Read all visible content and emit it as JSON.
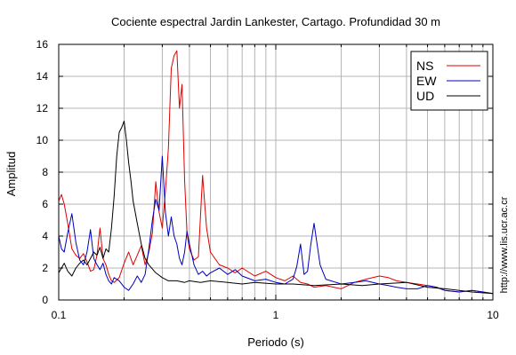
{
  "chart_data": {
    "type": "line",
    "title": "Cociente espectral Jardin Lankester, Cartago. Profundidad 30 m",
    "xlabel": "Periodo (s)",
    "ylabel": "Amplitud",
    "xscale": "log",
    "xlim": [
      0.1,
      10
    ],
    "ylim": [
      0,
      16
    ],
    "xticks": [
      {
        "value": 0.1,
        "label": "0.1"
      },
      {
        "value": 1,
        "label": "1"
      },
      {
        "value": 10,
        "label": "10"
      }
    ],
    "yticks": [
      {
        "value": 0,
        "label": "0"
      },
      {
        "value": 2,
        "label": "2"
      },
      {
        "value": 4,
        "label": "4"
      },
      {
        "value": 6,
        "label": "6"
      },
      {
        "value": 8,
        "label": "8"
      },
      {
        "value": 10,
        "label": "10"
      },
      {
        "value": 12,
        "label": "12"
      },
      {
        "value": 14,
        "label": "14"
      },
      {
        "value": 16,
        "label": "16"
      }
    ],
    "grid": true,
    "legend_position": "top-right",
    "side_note": "http://www.lis.ucr.ac.cr",
    "series": [
      {
        "name": "NS",
        "color": "#e00000",
        "x": [
          0.1,
          0.103,
          0.106,
          0.11,
          0.115,
          0.12,
          0.125,
          0.13,
          0.135,
          0.14,
          0.145,
          0.15,
          0.155,
          0.16,
          0.165,
          0.17,
          0.175,
          0.18,
          0.19,
          0.2,
          0.21,
          0.22,
          0.23,
          0.24,
          0.25,
          0.26,
          0.27,
          0.28,
          0.29,
          0.3,
          0.31,
          0.32,
          0.33,
          0.34,
          0.35,
          0.36,
          0.37,
          0.38,
          0.39,
          0.4,
          0.42,
          0.44,
          0.46,
          0.48,
          0.5,
          0.55,
          0.6,
          0.65,
          0.7,
          0.8,
          0.9,
          1.0,
          1.1,
          1.2,
          1.3,
          1.4,
          1.5,
          1.7,
          2.0,
          2.3,
          2.6,
          3.0,
          3.3,
          3.6,
          4.0,
          4.5,
          5.0,
          5.5,
          6.0,
          7.0,
          8.0,
          9.0,
          10.0
        ],
        "y": [
          6.2,
          6.6,
          6.0,
          4.8,
          3.2,
          2.8,
          2.6,
          2.9,
          2.4,
          1.8,
          1.9,
          2.8,
          4.5,
          2.6,
          2.2,
          1.6,
          1.2,
          1.1,
          1.4,
          2.3,
          3.0,
          2.2,
          2.8,
          3.4,
          2.2,
          3.0,
          4.2,
          7.4,
          5.5,
          4.5,
          6.8,
          9.5,
          14.5,
          15.3,
          15.6,
          12.0,
          13.5,
          7.5,
          4.2,
          3.2,
          2.5,
          2.7,
          7.8,
          4.5,
          3.0,
          2.2,
          2.0,
          1.7,
          2.0,
          1.5,
          1.8,
          1.4,
          1.2,
          1.5,
          1.1,
          1.0,
          0.8,
          0.9,
          0.7,
          1.1,
          1.3,
          1.5,
          1.4,
          1.2,
          1.1,
          1.0,
          0.9,
          0.8,
          0.6,
          0.5,
          0.6,
          0.5,
          0.4
        ]
      },
      {
        "name": "EW",
        "color": "#0000c0",
        "x": [
          0.1,
          0.103,
          0.106,
          0.11,
          0.115,
          0.12,
          0.125,
          0.13,
          0.135,
          0.14,
          0.145,
          0.15,
          0.155,
          0.16,
          0.165,
          0.17,
          0.175,
          0.18,
          0.19,
          0.2,
          0.21,
          0.22,
          0.23,
          0.24,
          0.25,
          0.26,
          0.27,
          0.28,
          0.29,
          0.3,
          0.31,
          0.32,
          0.33,
          0.34,
          0.35,
          0.36,
          0.37,
          0.38,
          0.39,
          0.4,
          0.42,
          0.44,
          0.46,
          0.48,
          0.5,
          0.55,
          0.6,
          0.65,
          0.7,
          0.8,
          0.9,
          1.0,
          1.1,
          1.2,
          1.25,
          1.3,
          1.35,
          1.4,
          1.45,
          1.5,
          1.6,
          1.7,
          2.0,
          2.3,
          2.6,
          3.0,
          3.3,
          3.6,
          4.0,
          4.5,
          5.0,
          5.5,
          6.0,
          7.0,
          8.0,
          9.0,
          10.0
        ],
        "y": [
          4.0,
          3.2,
          3.0,
          4.2,
          5.4,
          3.6,
          2.5,
          2.2,
          3.0,
          4.4,
          2.6,
          2.2,
          1.9,
          2.3,
          1.6,
          1.2,
          1.0,
          1.4,
          1.2,
          0.8,
          0.6,
          1.0,
          1.5,
          1.1,
          1.6,
          3.2,
          5.0,
          6.3,
          5.6,
          9.0,
          5.5,
          4.0,
          5.2,
          4.0,
          3.5,
          2.6,
          2.2,
          3.0,
          4.3,
          3.5,
          2.2,
          1.6,
          1.8,
          1.5,
          1.7,
          2.0,
          1.6,
          1.9,
          1.5,
          1.2,
          1.3,
          1.1,
          1.0,
          1.3,
          2.1,
          3.5,
          1.6,
          1.8,
          3.5,
          4.8,
          2.2,
          1.3,
          1.0,
          1.1,
          1.2,
          1.0,
          0.9,
          0.8,
          0.7,
          0.7,
          0.9,
          0.8,
          0.6,
          0.5,
          0.6,
          0.5,
          0.4
        ]
      },
      {
        "name": "UD",
        "color": "#000000",
        "x": [
          0.1,
          0.103,
          0.106,
          0.11,
          0.115,
          0.12,
          0.125,
          0.13,
          0.135,
          0.14,
          0.145,
          0.15,
          0.155,
          0.16,
          0.165,
          0.17,
          0.175,
          0.18,
          0.185,
          0.19,
          0.195,
          0.2,
          0.205,
          0.21,
          0.215,
          0.22,
          0.23,
          0.24,
          0.25,
          0.26,
          0.28,
          0.3,
          0.32,
          0.35,
          0.38,
          0.4,
          0.45,
          0.5,
          0.6,
          0.7,
          0.8,
          1.0,
          1.2,
          1.5,
          2.0,
          2.5,
          3.0,
          4.0,
          5.0,
          6.0,
          7.0,
          8.0,
          10.0
        ],
        "y": [
          1.7,
          2.0,
          2.3,
          1.8,
          1.5,
          2.0,
          2.3,
          2.5,
          2.2,
          2.6,
          3.0,
          2.8,
          3.3,
          2.6,
          3.2,
          3.0,
          4.5,
          6.5,
          9.0,
          10.5,
          10.8,
          11.2,
          10.0,
          8.6,
          7.5,
          6.2,
          4.8,
          3.5,
          2.6,
          2.2,
          1.7,
          1.4,
          1.2,
          1.2,
          1.1,
          1.2,
          1.1,
          1.2,
          1.1,
          1.0,
          1.1,
          1.0,
          1.0,
          0.9,
          1.0,
          0.9,
          1.0,
          1.1,
          0.8,
          0.7,
          0.6,
          0.5,
          0.4
        ]
      }
    ]
  }
}
